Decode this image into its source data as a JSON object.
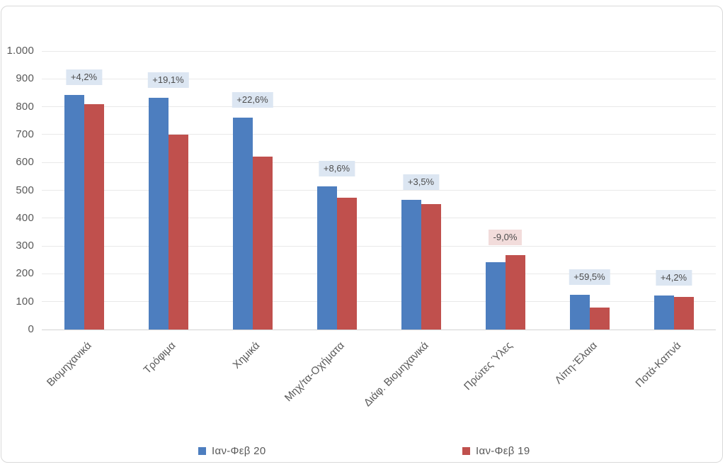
{
  "chart_data": {
    "type": "bar",
    "categories": [
      "Βιομηχανικά",
      "Τρόφιμα",
      "Χημικά",
      "Μηχ/τα-Οχήματα",
      "Διάφ. Βιομηχανικά",
      "Πρώτες Ύλες",
      "Λίπη-Έλαια",
      "Ποτά-Καπνά"
    ],
    "series": [
      {
        "name": "Ιαν-Φεβ 20",
        "color": "#4d7ebf",
        "values": [
          843,
          833,
          762,
          515,
          466,
          242,
          125,
          122
        ]
      },
      {
        "name": "Ιαν-Φεβ 19",
        "color": "#c0504d",
        "values": [
          808,
          700,
          621,
          474,
          450,
          266,
          79,
          117
        ]
      }
    ],
    "bar_labels": [
      {
        "text": "+4,2%",
        "negative": false
      },
      {
        "text": "+19,1%",
        "negative": false
      },
      {
        "text": "+22,6%",
        "negative": false
      },
      {
        "text": "+8,6%",
        "negative": false
      },
      {
        "text": "+3,5%",
        "negative": false
      },
      {
        "text": "-9,0%",
        "negative": true
      },
      {
        "text": "+59,5%",
        "negative": false
      },
      {
        "text": "+4,2%",
        "negative": false
      }
    ],
    "ylim": [
      0,
      1000
    ],
    "y_ticks": [
      "0",
      "100",
      "200",
      "300",
      "400",
      "500",
      "600",
      "700",
      "800",
      "900",
      "1.000"
    ],
    "grid": true,
    "legend_position": "bottom",
    "title": "",
    "xlabel": "",
    "ylabel": ""
  },
  "colors": {
    "series_2020": "#4d7ebf",
    "series_2019": "#c0504d",
    "label_bg_positive": "#dce6f2",
    "label_bg_negative": "#f2dcdb",
    "label_text": "#4d4d4d",
    "axis_text": "#595959",
    "gridline": "#e9e9e9",
    "axis_line": "#d2d2d2",
    "frame_border": "#d9d9d9"
  }
}
